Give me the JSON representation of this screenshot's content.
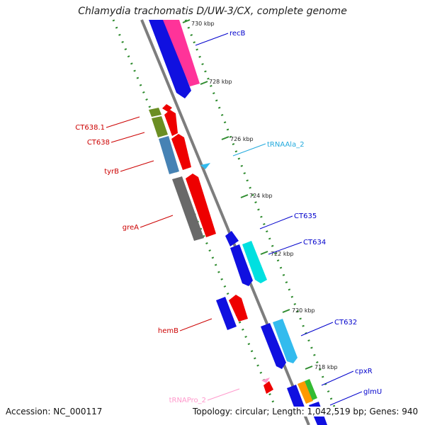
{
  "title": "Chlamydia trachomatis D/UW-3/CX, complete genome",
  "footer": {
    "accession": "Accession: NC_000117",
    "stats": "Topology: circular; Length: 1,042,519 bp; Genes: 940"
  },
  "colors": {
    "backbone": "#7d7d7d",
    "tick_dots": "#2e8b2e",
    "blue_gene": "#1010e0",
    "red_gene": "#ee0000",
    "pink_gene": "#ff3399",
    "cyan_gene": "#00e0e0",
    "lightblue_gene": "#33bbee",
    "olive_gene": "#6b8e23",
    "steel_gene": "#4682b4",
    "gray_gene": "#696969"
  },
  "ticks": [
    {
      "label": "730 kbp"
    },
    {
      "label": "728 kbp"
    },
    {
      "label": "726 kbp"
    },
    {
      "label": "724 kbp"
    },
    {
      "label": "722 kbp"
    },
    {
      "label": "720 kbp"
    },
    {
      "label": "718 kbp"
    }
  ],
  "labels": [
    {
      "text": "recB",
      "color": "#0000cc"
    },
    {
      "text": "CT638.1",
      "color": "#cc0000"
    },
    {
      "text": "CT638",
      "color": "#cc0000"
    },
    {
      "text": "tRNAAla_2",
      "color": "#22aadd"
    },
    {
      "text": "tyrB",
      "color": "#cc0000"
    },
    {
      "text": "CT635",
      "color": "#0000cc"
    },
    {
      "text": "CT634",
      "color": "#0000cc"
    },
    {
      "text": "greA",
      "color": "#cc0000"
    },
    {
      "text": "CT632",
      "color": "#0000cc"
    },
    {
      "text": "hemB",
      "color": "#cc0000"
    },
    {
      "text": "cpxR",
      "color": "#0000cc"
    },
    {
      "text": "glmU",
      "color": "#0000cc"
    },
    {
      "text": "tRNAPro_2",
      "color": "#ff99cc"
    }
  ]
}
